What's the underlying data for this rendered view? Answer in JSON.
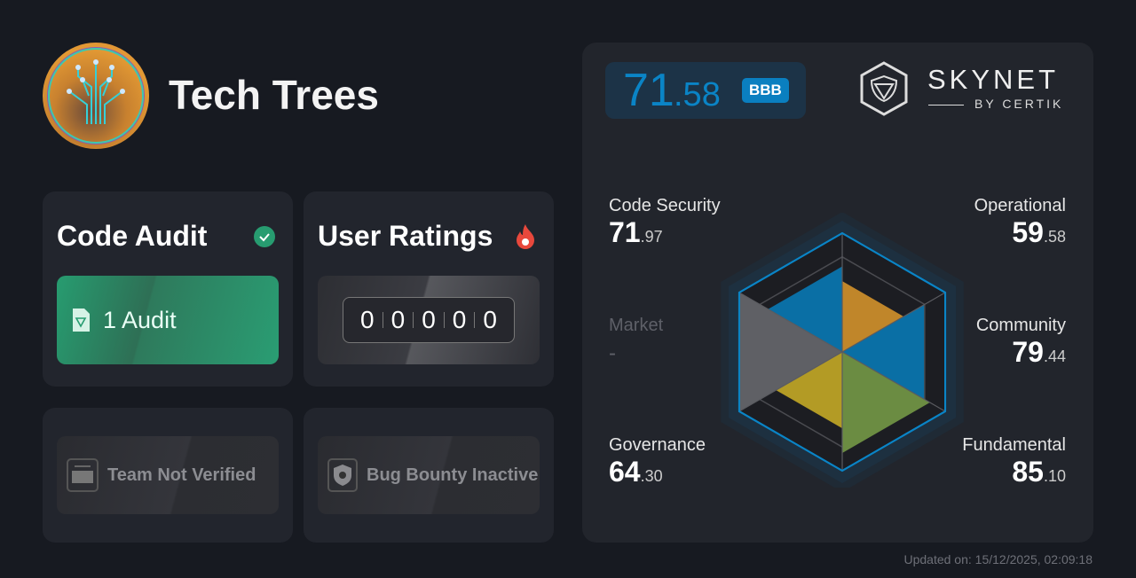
{
  "project": {
    "name": "Tech Trees"
  },
  "code_audit": {
    "title": "Code Audit",
    "status_icon": "check-circle-icon",
    "label": "1 Audit",
    "color": "#279c70"
  },
  "user_ratings": {
    "title": "User Ratings",
    "icon": "fire-icon",
    "digits": [
      "0",
      "0",
      "0",
      "0",
      "0"
    ]
  },
  "team": {
    "label": "Team Not Verified"
  },
  "bug_bounty": {
    "label": "Bug Bounty Inactive"
  },
  "skynet": {
    "score_int": "71",
    "score_dec": ".58",
    "grade": "BBB",
    "brand": "SKYNET",
    "by": "BY CERTIK",
    "accent": "#0a84c6"
  },
  "chart_data": {
    "type": "radar",
    "axes": [
      {
        "name": "Code Security",
        "int": "71",
        "dec": ".97",
        "value": 71.97,
        "color": "#0a6fa5"
      },
      {
        "name": "Operational",
        "int": "59",
        "dec": ".58",
        "value": 59.58,
        "color": "#c0862a"
      },
      {
        "name": "Community",
        "int": "79",
        "dec": ".44",
        "value": 79.44,
        "color": "#0a6fa5"
      },
      {
        "name": "Fundamental",
        "int": "85",
        "dec": ".10",
        "value": 85.1,
        "color": "#6b8c42"
      },
      {
        "name": "Governance",
        "int": "64",
        "dec": ".30",
        "value": 64.3,
        "color": "#b39b25"
      },
      {
        "name": "Market",
        "int": "-",
        "dec": "",
        "value": null,
        "color": "#5f6065"
      }
    ],
    "range": [
      0,
      100
    ]
  },
  "footer": {
    "updated": "Updated on: 15/12/2025, 02:09:18"
  }
}
